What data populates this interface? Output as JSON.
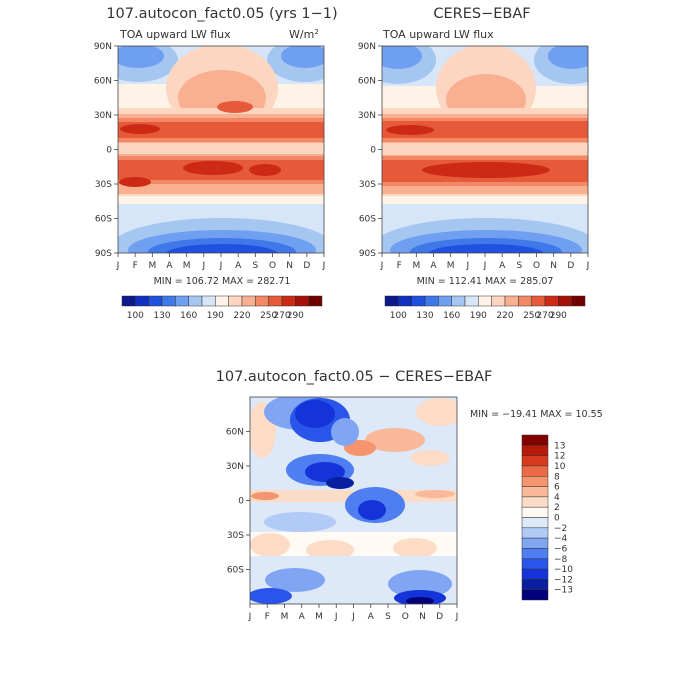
{
  "colors": {
    "abs_scale": [
      "#0a1a8c",
      "#1030c0",
      "#2050e0",
      "#3f78e8",
      "#6f9ff0",
      "#a6c6f2",
      "#d6e6f8",
      "#fff2e6",
      "#fcd6c0",
      "#f8b090",
      "#f28866",
      "#e65a3a",
      "#cc2a14",
      "#a51008",
      "#700000"
    ],
    "diff_scale": [
      "#00007a",
      "#0a1ea0",
      "#1433d8",
      "#2a55ea",
      "#4f7ef0",
      "#80a6f3",
      "#b1cbf6",
      "#dde8f9",
      "#fffaf3",
      "#fcdcc6",
      "#f9b999",
      "#f4956f",
      "#ec6a45",
      "#d83a1e",
      "#b51a0a",
      "#800000"
    ]
  },
  "chart_data": [
    {
      "id": "model",
      "type": "heatmap",
      "title": "107.autocon_fact0.05 (yrs 1−1)",
      "subtitle_left": "TOA upward LW flux",
      "subtitle_right": "W/m",
      "subtitle_right_sup": "2",
      "x_ticks": [
        "J",
        "F",
        "M",
        "A",
        "M",
        "J",
        "J",
        "A",
        "S",
        "O",
        "N",
        "D",
        "J"
      ],
      "y_ticks": [
        "90N",
        "60N",
        "30N",
        "0",
        "30S",
        "60S",
        "90S"
      ],
      "y_range": [
        -90,
        90
      ],
      "min_max_text": "MIN = 106.72  MAX = 282.71",
      "min": 106.72,
      "max": 282.71,
      "colorbar_labels": [
        "100",
        "130",
        "160",
        "190",
        "220",
        "250",
        "270",
        "290"
      ],
      "colorbar_levels": [
        90,
        100,
        115,
        130,
        145,
        160,
        175,
        190,
        205,
        220,
        235,
        250,
        260,
        270,
        280,
        290
      ]
    },
    {
      "id": "obs",
      "type": "heatmap",
      "title": "CERES−EBAF",
      "subtitle_left": "TOA upward LW flux",
      "x_ticks": [
        "J",
        "F",
        "M",
        "A",
        "M",
        "J",
        "J",
        "A",
        "S",
        "O",
        "N",
        "D",
        "J"
      ],
      "y_ticks": [
        "90N",
        "60N",
        "30N",
        "0",
        "30S",
        "60S",
        "90S"
      ],
      "y_range": [
        -90,
        90
      ],
      "min_max_text": "MIN = 112.41  MAX = 285.07",
      "min": 112.41,
      "max": 285.07,
      "colorbar_labels": [
        "100",
        "130",
        "160",
        "190",
        "220",
        "250",
        "270",
        "290"
      ]
    },
    {
      "id": "diff",
      "type": "heatmap",
      "title": "107.autocon_fact0.05 − CERES−EBAF",
      "x_ticks": [
        "J",
        "F",
        "M",
        "A",
        "M",
        "J",
        "J",
        "A",
        "S",
        "O",
        "N",
        "D",
        "J"
      ],
      "y_ticks": [
        "60N",
        "30N",
        "0",
        "30S",
        "60S"
      ],
      "y_range": [
        -90,
        90
      ],
      "min_max_text": "MIN = −19.41 MAX =  10.55",
      "min": -19.41,
      "max": 10.55,
      "colorbar_labels": [
        "13",
        "12",
        "10",
        "8",
        "6",
        "4",
        "2",
        "0",
        "−2",
        "−4",
        "−6",
        "−8",
        "−10",
        "−12",
        "−13"
      ]
    }
  ]
}
